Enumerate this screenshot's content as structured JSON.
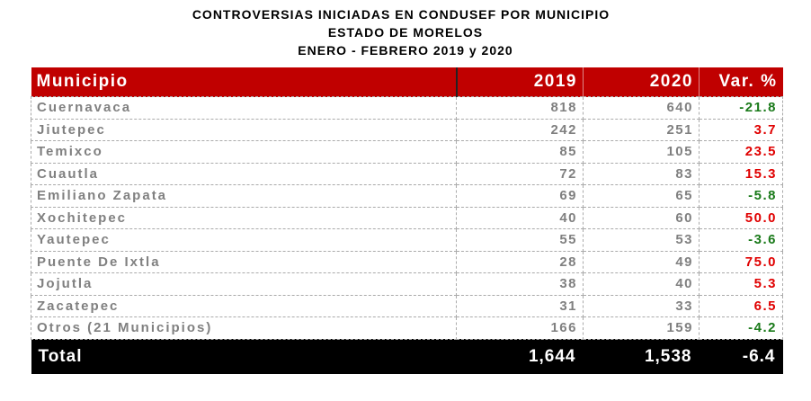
{
  "title": [
    "CONTROVERSIAS INICIADAS EN CONDUSEF POR MUNICIPIO",
    "ESTADO DE MORELOS",
    "ENERO - FEBRERO 2019 y 2020"
  ],
  "headers": [
    "Municipio",
    "2019",
    "2020",
    "Var. %"
  ],
  "rows": [
    [
      "Cuernavaca",
      "818",
      "640",
      "-21.8"
    ],
    [
      "Jiutepec",
      "242",
      "251",
      "3.7"
    ],
    [
      "Temixco",
      "85",
      "105",
      "23.5"
    ],
    [
      "Cuautla",
      "72",
      "83",
      "15.3"
    ],
    [
      "Emiliano Zapata",
      "69",
      "65",
      "-5.8"
    ],
    [
      "Xochitepec",
      "40",
      "60",
      "50.0"
    ],
    [
      "Yautepec",
      "55",
      "53",
      "-3.6"
    ],
    [
      "Puente De Ixtla",
      "28",
      "49",
      "75.0"
    ],
    [
      "Jojutla",
      "38",
      "40",
      "5.3"
    ],
    [
      "Zacatepec",
      "31",
      "33",
      "6.5"
    ],
    [
      "Otros (21 Municipios)",
      "166",
      "159",
      "-4.2"
    ]
  ],
  "total": [
    "Total",
    "1,644",
    "1,538",
    "-6.4"
  ],
  "colors": {
    "header": "#c00000",
    "negative": "#1a7a1a",
    "positive": "#e00000"
  }
}
